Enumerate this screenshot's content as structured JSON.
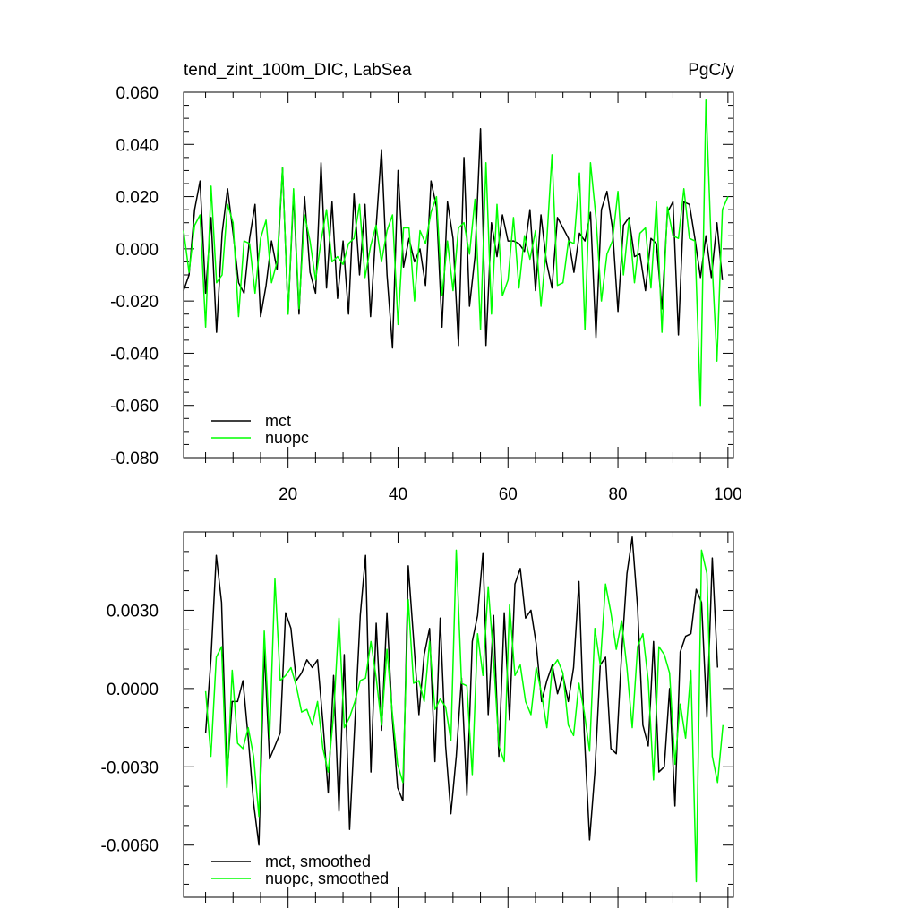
{
  "chart_data": [
    {
      "type": "line",
      "title": "tend_zint_100m_DIC, LabSea",
      "units": "PgC/y",
      "xlim": [
        1,
        101
      ],
      "ylim": [
        -0.08,
        0.06
      ],
      "x_ticks": [
        "20",
        "40",
        "60",
        "80",
        "100"
      ],
      "y_ticks": [
        "-0.080",
        "-0.060",
        "-0.040",
        "-0.020",
        "0.000",
        "0.020",
        "0.040",
        "0.060"
      ],
      "legend_position": "bottom-left",
      "grid": false,
      "series": [
        {
          "name": "mct",
          "color": "#000000",
          "x_start": 1,
          "x_step": 1,
          "values": [
            -0.016,
            -0.01,
            0.015,
            0.026,
            -0.017,
            0.012,
            -0.032,
            0.006,
            0.023,
            0.006,
            -0.013,
            -0.017,
            0.004,
            0.017,
            -0.026,
            -0.014,
            0.003,
            -0.008,
            0.031,
            -0.025,
            0.021,
            -0.025,
            0.02,
            -0.009,
            -0.017,
            0.033,
            -0.015,
            0.018,
            -0.019,
            0.003,
            -0.025,
            0.021,
            -0.01,
            0.017,
            -0.026,
            0.008,
            0.038,
            -0.01,
            -0.038,
            0.03,
            -0.007,
            0.004,
            -0.005,
            0.0,
            -0.014,
            0.026,
            0.016,
            -0.03,
            0.018,
            0.004,
            -0.037,
            0.035,
            -0.022,
            -0.003,
            0.046,
            -0.037,
            0.01,
            -0.003,
            0.013,
            0.003,
            0.003,
            0.002,
            -0.001,
            0.015,
            -0.016,
            0.013,
            -0.005,
            -0.015,
            0.012,
            0.008,
            0.004,
            -0.009,
            0.006,
            0.003,
            0.014,
            -0.034,
            0.015,
            0.022,
            0.008,
            -0.024,
            0.009,
            0.012,
            -0.003,
            -0.002,
            -0.016,
            0.004,
            0.002,
            -0.023,
            0.014,
            0.018,
            -0.033,
            0.018,
            0.017,
            0.004,
            -0.011,
            0.005,
            -0.011,
            0.01,
            -0.012
          ]
        },
        {
          "name": "nuopc",
          "color": "#00ff00",
          "x_start": 1,
          "x_step": 1,
          "values": [
            0.007,
            -0.009,
            0.009,
            0.013,
            -0.03,
            0.024,
            -0.013,
            -0.01,
            0.017,
            0.01,
            -0.026,
            0.003,
            0.002,
            -0.017,
            0.004,
            0.011,
            -0.013,
            -0.005,
            0.031,
            -0.025,
            0.023,
            -0.023,
            0.013,
            0.003,
            -0.012,
            0.003,
            0.015,
            -0.005,
            -0.003,
            -0.006,
            0.002,
            0.004,
            0.017,
            -0.011,
            0.001,
            0.009,
            -0.005,
            0.007,
            0.013,
            -0.029,
            0.008,
            0.008,
            -0.02,
            0.007,
            0.002,
            0.014,
            0.02,
            -0.018,
            0.003,
            -0.016,
            0.008,
            0.01,
            -0.002,
            0.019,
            -0.031,
            0.033,
            -0.025,
            0.017,
            -0.018,
            -0.012,
            0.012,
            -0.015,
            0.005,
            -0.004,
            0.007,
            -0.022,
            0.001,
            0.036,
            -0.014,
            -0.013,
            0.003,
            0.002,
            0.029,
            -0.031,
            0.033,
            0.012,
            -0.02,
            -0.002,
            0.003,
            0.022,
            -0.01,
            0.011,
            -0.013,
            0.006,
            0.008,
            -0.015,
            0.018,
            -0.032,
            0.016,
            0.005,
            0.004,
            0.023,
            0.004,
            0.003,
            -0.06,
            0.057,
            0.0,
            -0.043,
            0.015,
            0.02
          ]
        }
      ]
    },
    {
      "type": "line",
      "title": "",
      "xlim": [
        1,
        101
      ],
      "ylim": [
        -0.008,
        0.006
      ],
      "x_ticks": [],
      "y_ticks": [
        "-0.0060",
        "-0.0030",
        "0.0000",
        "0.0030"
      ],
      "legend_position": "bottom-left",
      "grid": false,
      "series": [
        {
          "name": "mct, smoothed",
          "color": "#000000",
          "x_start": 5,
          "x_step": 0.97,
          "values": [
            -0.0017,
            0.0011,
            0.0051,
            0.0033,
            -0.0034,
            -0.0005,
            -0.0005,
            0.0003,
            -0.0019,
            -0.0044,
            -0.006,
            0.0015,
            -0.0027,
            -0.0022,
            -0.0017,
            0.0029,
            0.0023,
            0.0003,
            0.0006,
            0.0011,
            0.0008,
            0.0011,
            -0.0013,
            -0.004,
            0.0005,
            -0.0047,
            0.0013,
            -0.0054,
            -0.0013,
            0.0028,
            0.0051,
            -0.0032,
            0.0025,
            -0.0016,
            0.0029,
            -0.0011,
            -0.0038,
            -0.0043,
            0.0047,
            0.0019,
            -0.001,
            0.0013,
            0.0023,
            -0.0028,
            0.0027,
            -0.0022,
            -0.0048,
            -0.0026,
            0.0004,
            -0.0041,
            0.0018,
            0.0028,
            0.0052,
            -0.001,
            0.0028,
            -0.0026,
            0.0029,
            -0.0012,
            0.004,
            0.0046,
            0.0027,
            0.003,
            0.0017,
            -0.0005,
            0.0003,
            0.0009,
            -0.0002,
            0.0005,
            -0.0005,
            0.0008,
            0.0041,
            -0.0017,
            -0.0058,
            -0.0032,
            0.0009,
            0.0012,
            -0.0023,
            -0.0025,
            0.0013,
            0.0044,
            0.0058,
            0.0031,
            -0.0014,
            -0.0022,
            0.0018,
            -0.0032,
            -0.003,
            0.0,
            -0.0045,
            0.0014,
            0.002,
            0.0021,
            0.0038,
            0.0033,
            -0.0011,
            0.005,
            0.0008
          ]
        },
        {
          "name": "nuopc, smoothed",
          "color": "#00ff00",
          "x_start": 5,
          "x_step": 0.97,
          "values": [
            -0.0001,
            -0.0026,
            0.0012,
            0.0016,
            -0.0038,
            0.0007,
            -0.0021,
            -0.0023,
            -0.0015,
            -0.0026,
            -0.0049,
            0.0022,
            -0.0019,
            0.0042,
            0.0003,
            0.0005,
            0.0008,
            0.0001,
            -0.0009,
            -0.0008,
            -0.0014,
            -0.0005,
            -0.0023,
            -0.0032,
            -0.001,
            0.0027,
            -0.0015,
            -0.0011,
            -0.0005,
            0.0003,
            0.0004,
            0.0018,
            0.0004,
            -0.0014,
            0.0015,
            -0.0009,
            -0.0029,
            -0.0036,
            0.0034,
            0.0002,
            0.0003,
            -0.0005,
            0.0018,
            -0.0008,
            -0.0004,
            -0.0007,
            -0.002,
            0.0053,
            0.0002,
            0.0001,
            -0.0033,
            0.0021,
            0.0005,
            0.0039,
            0.0011,
            -0.0022,
            -0.0028,
            0.0032,
            0.0005,
            0.0009,
            -0.0005,
            -0.001,
            0.0008,
            -0.0002,
            -0.0015,
            0.0008,
            0.0011,
            0.0006,
            -0.0014,
            -0.0018,
            0.0002,
            -0.0009,
            -0.0024,
            0.0023,
            0.0009,
            0.004,
            0.0029,
            0.0015,
            0.0026,
            0.0008,
            -0.0015,
            0.0016,
            0.0021,
            0.0003,
            -0.0035,
            0.0016,
            0.0013,
            0.0006,
            -0.0029,
            -0.0006,
            -0.0019,
            0.0007,
            -0.0074,
            0.0053,
            0.0044,
            -0.0026,
            -0.0036,
            -0.0014
          ]
        }
      ]
    }
  ]
}
